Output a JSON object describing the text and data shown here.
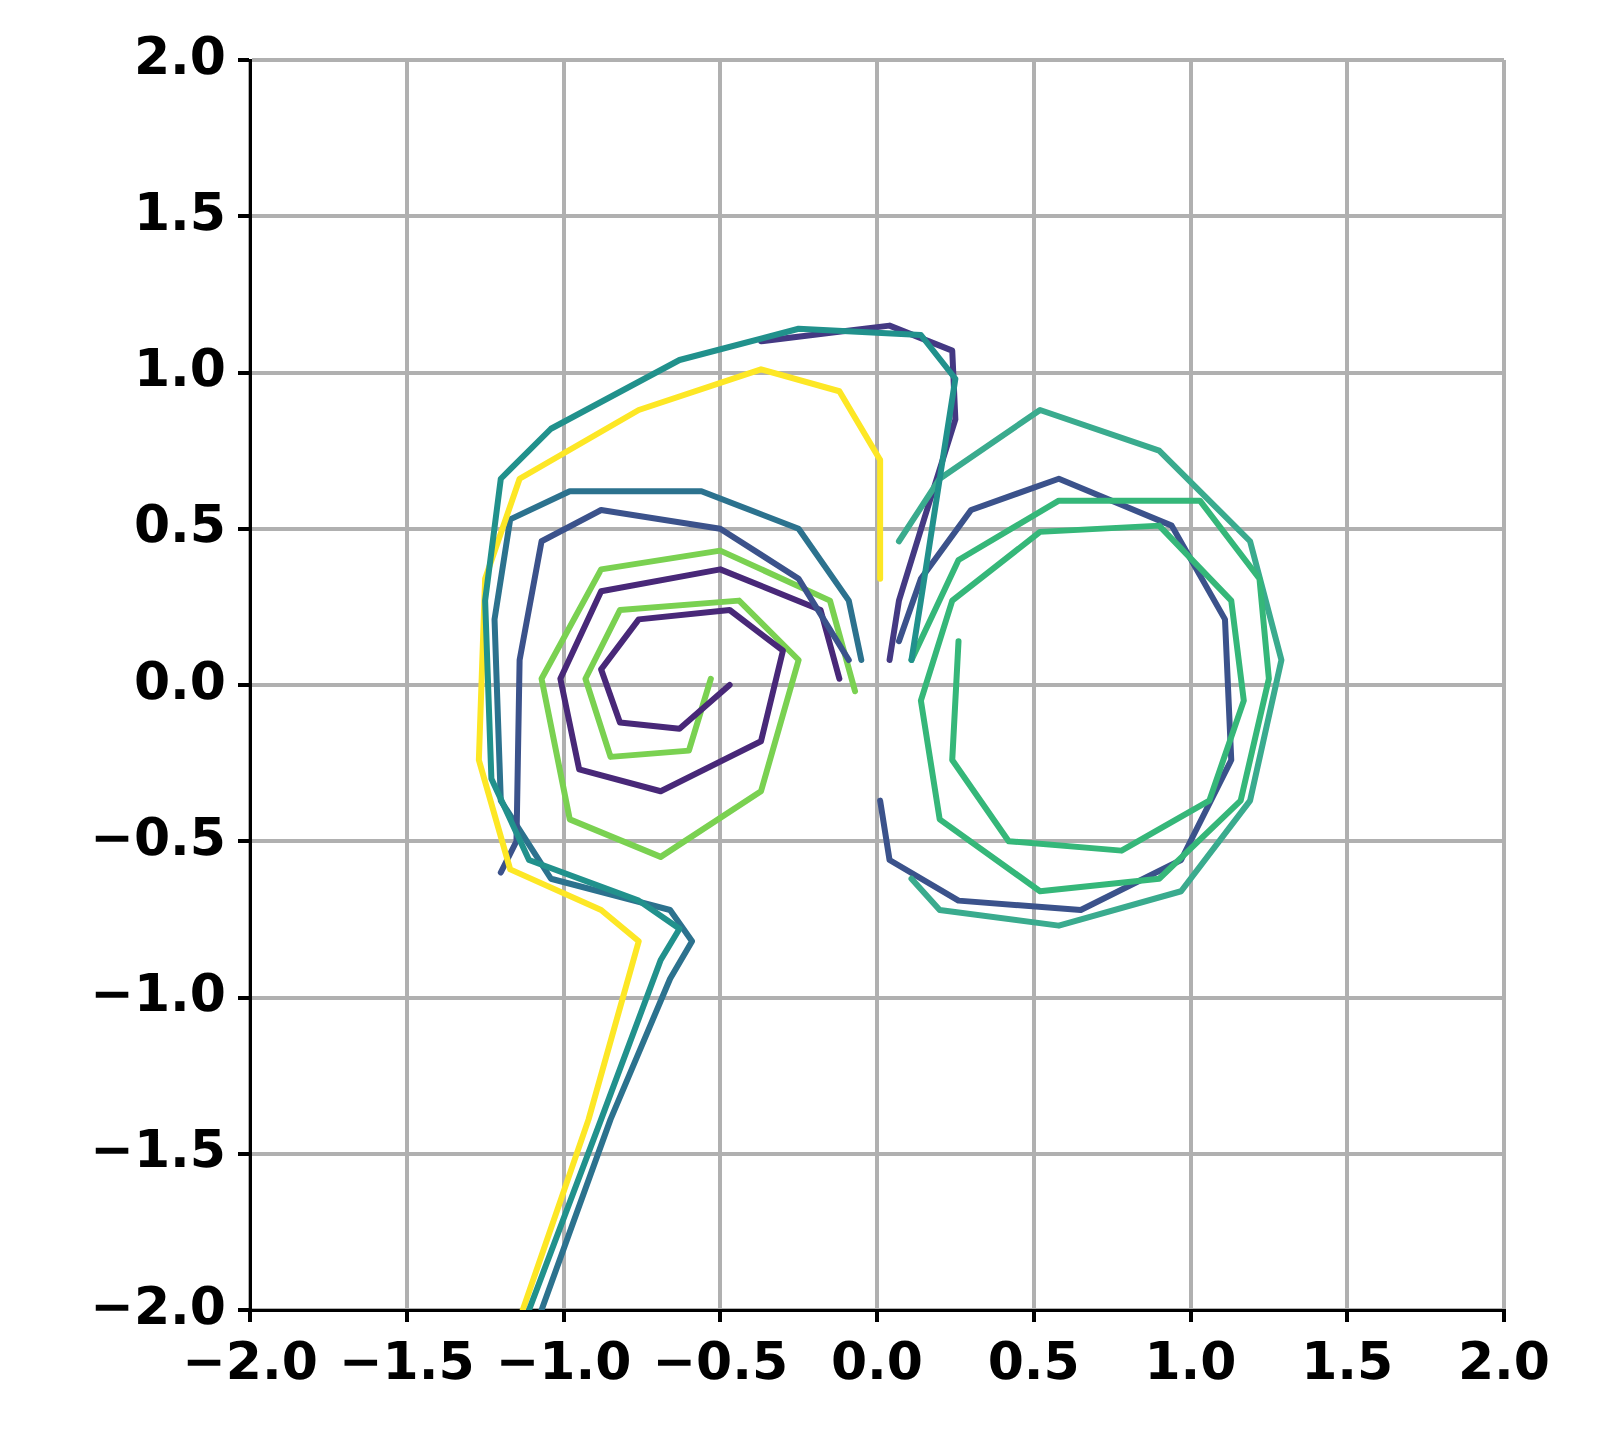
{
  "chart_data": {
    "type": "line",
    "marker": "none",
    "grid": true,
    "xlim": [
      -2,
      2
    ],
    "ylim": [
      -2,
      2
    ],
    "xticks": [
      {
        "value": -2,
        "label": "−2.0"
      },
      {
        "value": -1.5,
        "label": "−1.5"
      },
      {
        "value": -1,
        "label": "−1.0"
      },
      {
        "value": -0.5,
        "label": "−0.5"
      },
      {
        "value": 0,
        "label": "0.0"
      },
      0.5,
      {
        "value": 1,
        "label": "1.0"
      },
      1.5,
      {
        "value": 2,
        "label": "2.0"
      }
    ],
    "yticks": [
      {
        "value": -2,
        "label": "−2.0"
      },
      {
        "value": -1.5,
        "label": "−1.5"
      },
      {
        "value": -1,
        "label": "−1.0"
      },
      {
        "value": -0.5,
        "label": "−0.5"
      },
      {
        "value": 0,
        "label": "0.0"
      },
      0.5,
      {
        "value": 1,
        "label": "1.0"
      },
      1.5,
      {
        "value": 2,
        "label": "2.0"
      }
    ],
    "series": [
      {
        "color": "#21918c",
        "x": [
          -1.11,
          -0.88,
          -0.69,
          -0.63,
          -0.76,
          -1.11,
          -1.23,
          -1.25,
          -1.2,
          -1.04,
          -0.63,
          -0.25,
          0.14,
          0.25,
          0.2,
          0.14,
          0.11
        ],
        "values": [
          -2,
          -1.39,
          -0.88,
          -0.78,
          -0.69,
          -0.56,
          -0.3,
          0.27,
          0.66,
          0.82,
          1.04,
          1.14,
          1.12,
          0.98,
          0.66,
          0.27,
          0.08
        ]
      },
      {
        "color": "#fde725",
        "x": [
          -1.13,
          -0.92,
          -0.76,
          -0.88,
          -1.17,
          -1.27,
          -1.25,
          -1.14,
          -0.76,
          -0.37,
          -0.12,
          0.01,
          0.01
        ],
        "values": [
          -2,
          -1.39,
          -0.82,
          -0.72,
          -0.59,
          -0.24,
          0.34,
          0.66,
          0.88,
          1.01,
          0.94,
          0.72,
          0.34
        ]
      },
      {
        "color": "#3b528b",
        "x": [
          -0.09,
          -0.25,
          -0.5,
          -0.88,
          -1.07,
          -1.14,
          -1.15,
          -1.2
        ],
        "values": [
          0.08,
          0.34,
          0.5,
          0.56,
          0.46,
          0.08,
          -0.5,
          -0.6
        ]
      },
      {
        "color": "#482878",
        "x": [
          -0.47,
          -0.63,
          -0.82,
          -0.88,
          -0.76,
          -0.47,
          -0.3,
          -0.37,
          -0.69,
          -0.95,
          -1.01,
          -0.88,
          -0.5,
          -0.18,
          -0.12
        ],
        "values": [
          0,
          -0.14,
          -0.12,
          0.05,
          0.21,
          0.24,
          0.11,
          -0.18,
          -0.34,
          -0.27,
          0.02,
          0.3,
          0.37,
          0.24,
          0.02
        ]
      },
      {
        "color": "#7ad151",
        "x": [
          -0.53,
          -0.6,
          -0.85,
          -0.93,
          -0.82,
          -0.44,
          -0.25,
          -0.37,
          -0.69,
          -0.98,
          -1.07,
          -0.88,
          -0.5,
          -0.15,
          -0.07
        ],
        "values": [
          0.02,
          -0.21,
          -0.23,
          0.02,
          0.24,
          0.27,
          0.08,
          -0.34,
          -0.55,
          -0.43,
          0.02,
          0.37,
          0.43,
          0.27,
          -0.02
        ]
      },
      {
        "color": "#35b779",
        "x": [
          0.11,
          0.26,
          0.58,
          1.03,
          1.22,
          1.25,
          1.16,
          0.9,
          0.52,
          0.2,
          0.14,
          0.24,
          0.52,
          0.9,
          1.13,
          1.17,
          1.06,
          0.78,
          0.42,
          0.24,
          0.26
        ],
        "values": [
          0.08,
          0.4,
          0.59,
          0.59,
          0.34,
          0.02,
          -0.37,
          -0.62,
          -0.66,
          -0.43,
          -0.05,
          0.27,
          0.49,
          0.51,
          0.27,
          -0.05,
          -0.37,
          -0.53,
          -0.5,
          -0.24,
          0.14
        ]
      },
      {
        "color": "#3aab8e",
        "x": [
          0.11,
          0.2,
          0.58,
          0.97,
          1.19,
          1.29,
          1.19,
          0.9,
          0.52,
          0.2,
          0.07
        ],
        "values": [
          -0.62,
          -0.72,
          -0.77,
          -0.66,
          -0.37,
          0.08,
          0.46,
          0.75,
          0.88,
          0.66,
          0.46
        ]
      },
      {
        "color": "#3b528b",
        "x": [
          0.01,
          0.04,
          0.26,
          0.65,
          0.97,
          1.13,
          1.11,
          0.94,
          0.58,
          0.3,
          0.14,
          0.07
        ],
        "values": [
          -0.37,
          -0.56,
          -0.69,
          -0.72,
          -0.56,
          -0.24,
          0.21,
          0.51,
          0.66,
          0.56,
          0.34,
          0.14
        ]
      },
      {
        "color": "#443983",
        "x": [
          -0.37,
          0.04,
          0.24,
          0.25,
          0.15,
          0.07,
          0.04
        ],
        "values": [
          1.1,
          1.15,
          1.07,
          0.85,
          0.53,
          0.27,
          0.08
        ]
      },
      {
        "color": "#2c728e",
        "x": [
          -1.07,
          -0.85,
          -0.66,
          -0.59,
          -0.66,
          -1.04,
          -1.2,
          -1.22,
          -1.17,
          -0.98,
          -0.56,
          -0.25,
          -0.09,
          -0.05
        ],
        "values": [
          -2,
          -1.39,
          -0.94,
          -0.82,
          -0.72,
          -0.62,
          -0.37,
          0.21,
          0.53,
          0.62,
          0.62,
          0.5,
          0.27,
          0.08
        ]
      }
    ]
  }
}
